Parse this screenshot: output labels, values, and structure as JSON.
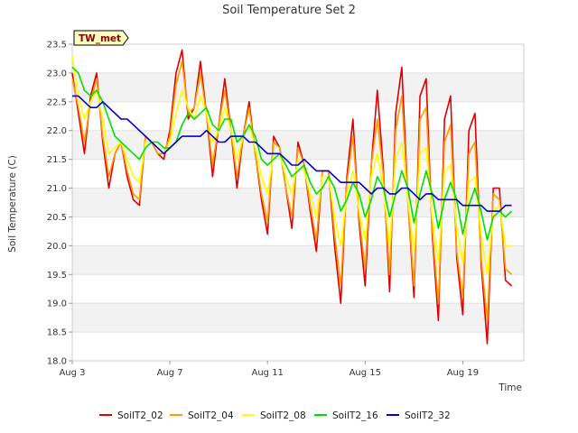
{
  "chart_data": {
    "type": "line",
    "title": "Soil Temperature Set 2",
    "xlabel": "Time",
    "ylabel": "Soil Temperature (C)",
    "station_badge": "TW_met",
    "x_unit": "day of August",
    "xlim": [
      3,
      21.5
    ],
    "ylim": [
      18.0,
      23.5
    ],
    "x_ticks": [
      {
        "value": 3,
        "label": "Aug 3"
      },
      {
        "value": 7,
        "label": "Aug 7"
      },
      {
        "value": 11,
        "label": "Aug 11"
      },
      {
        "value": 15,
        "label": "Aug 15"
      },
      {
        "value": 19,
        "label": "Aug 19"
      }
    ],
    "y_ticks": [
      "18.0",
      "18.5",
      "19.0",
      "19.5",
      "20.0",
      "20.5",
      "21.0",
      "21.5",
      "22.0",
      "22.5",
      "23.0",
      "23.5"
    ],
    "grid": "horizontal alternating bands",
    "legend_position": "bottom",
    "x": [
      3.0,
      3.25,
      3.5,
      3.75,
      4.0,
      4.25,
      4.5,
      4.75,
      5.0,
      5.25,
      5.5,
      5.75,
      6.0,
      6.25,
      6.5,
      6.75,
      7.0,
      7.25,
      7.5,
      7.75,
      8.0,
      8.25,
      8.5,
      8.75,
      9.0,
      9.25,
      9.5,
      9.75,
      10.0,
      10.25,
      10.5,
      10.75,
      11.0,
      11.25,
      11.5,
      11.75,
      12.0,
      12.25,
      12.5,
      12.75,
      13.0,
      13.25,
      13.5,
      13.75,
      14.0,
      14.25,
      14.5,
      14.75,
      15.0,
      15.25,
      15.5,
      15.75,
      16.0,
      16.25,
      16.5,
      16.75,
      17.0,
      17.25,
      17.5,
      17.75,
      18.0,
      18.25,
      18.5,
      18.75,
      19.0,
      19.25,
      19.5,
      19.75,
      20.0,
      20.25,
      20.5,
      20.75,
      21.0
    ],
    "series": [
      {
        "name": "SoilT2_02",
        "color": "#e00000",
        "values": [
          23.0,
          22.3,
          21.6,
          22.6,
          23.0,
          21.8,
          21.0,
          21.6,
          21.8,
          21.2,
          20.8,
          20.7,
          21.9,
          21.8,
          21.6,
          21.5,
          22.0,
          23.0,
          23.4,
          22.2,
          22.4,
          23.2,
          22.3,
          21.2,
          22.1,
          22.9,
          22.0,
          21.0,
          21.9,
          22.5,
          21.6,
          20.8,
          20.2,
          21.9,
          21.7,
          21.0,
          20.3,
          21.8,
          21.4,
          20.6,
          19.9,
          21.3,
          21.3,
          20.0,
          19.0,
          21.2,
          22.2,
          20.4,
          19.3,
          21.4,
          22.7,
          21.3,
          19.2,
          22.3,
          23.1,
          20.8,
          19.1,
          22.6,
          22.9,
          20.2,
          18.7,
          22.2,
          22.6,
          19.8,
          18.8,
          22.0,
          22.3,
          19.7,
          18.3,
          21.0,
          21.0,
          19.4,
          19.3
        ]
      },
      {
        "name": "SoilT2_04",
        "color": "#ff9a00",
        "values": [
          22.9,
          22.4,
          21.8,
          22.5,
          22.9,
          21.9,
          21.2,
          21.6,
          21.8,
          21.3,
          20.9,
          20.8,
          21.9,
          21.8,
          21.6,
          21.6,
          21.9,
          22.8,
          23.2,
          22.3,
          22.4,
          23.0,
          22.3,
          21.4,
          22.1,
          22.7,
          22.0,
          21.2,
          21.9,
          22.4,
          21.6,
          20.9,
          20.4,
          21.8,
          21.7,
          21.0,
          20.5,
          21.7,
          21.4,
          20.7,
          20.1,
          21.3,
          21.3,
          20.2,
          19.3,
          21.1,
          21.9,
          20.5,
          19.6,
          21.4,
          22.2,
          21.2,
          19.5,
          22.0,
          22.6,
          20.8,
          19.3,
          22.2,
          22.4,
          20.3,
          19.0,
          21.8,
          22.1,
          19.9,
          19.1,
          21.6,
          21.8,
          19.8,
          18.7,
          20.9,
          20.8,
          19.6,
          19.5
        ]
      },
      {
        "name": "SoilT2_08",
        "color": "#ffff00",
        "values": [
          23.3,
          22.6,
          22.2,
          22.5,
          22.7,
          22.2,
          21.6,
          21.7,
          21.8,
          21.5,
          21.2,
          21.1,
          21.8,
          21.8,
          21.7,
          21.6,
          21.8,
          22.3,
          22.7,
          22.4,
          22.2,
          22.6,
          22.3,
          21.8,
          22.0,
          22.4,
          22.0,
          21.5,
          21.9,
          22.1,
          21.7,
          21.2,
          20.9,
          21.6,
          21.6,
          21.2,
          20.9,
          21.5,
          21.3,
          20.9,
          20.5,
          21.2,
          21.2,
          20.5,
          20.0,
          20.9,
          21.3,
          20.6,
          20.1,
          21.2,
          21.6,
          21.0,
          20.0,
          21.5,
          21.8,
          20.8,
          19.9,
          21.6,
          21.7,
          20.5,
          19.7,
          21.3,
          21.4,
          20.3,
          19.7,
          21.1,
          21.2,
          20.2,
          19.5,
          20.6,
          20.7,
          20.0,
          20.0
        ]
      },
      {
        "name": "SoilT2_16",
        "color": "#00e000",
        "values": [
          23.1,
          23.0,
          22.7,
          22.6,
          22.7,
          22.5,
          22.2,
          21.9,
          21.8,
          21.7,
          21.6,
          21.5,
          21.7,
          21.8,
          21.8,
          21.7,
          21.7,
          21.8,
          22.1,
          22.3,
          22.2,
          22.3,
          22.4,
          22.1,
          22.0,
          22.2,
          22.2,
          21.8,
          21.9,
          22.1,
          21.9,
          21.5,
          21.4,
          21.5,
          21.6,
          21.4,
          21.2,
          21.3,
          21.4,
          21.1,
          20.9,
          21.0,
          21.2,
          21.0,
          20.6,
          20.8,
          21.1,
          20.9,
          20.5,
          20.8,
          21.2,
          21.0,
          20.5,
          20.9,
          21.3,
          21.0,
          20.4,
          20.9,
          21.3,
          20.9,
          20.3,
          20.8,
          21.1,
          20.8,
          20.2,
          20.7,
          21.0,
          20.6,
          20.1,
          20.5,
          20.6,
          20.5,
          20.6
        ]
      },
      {
        "name": "SoilT2_32",
        "color": "#0000d0",
        "values": [
          22.6,
          22.6,
          22.5,
          22.4,
          22.4,
          22.5,
          22.4,
          22.3,
          22.2,
          22.2,
          22.1,
          22.0,
          21.9,
          21.8,
          21.7,
          21.6,
          21.7,
          21.8,
          21.9,
          21.9,
          21.9,
          21.9,
          22.0,
          21.9,
          21.8,
          21.8,
          21.9,
          21.9,
          21.9,
          21.8,
          21.8,
          21.7,
          21.6,
          21.6,
          21.6,
          21.5,
          21.4,
          21.4,
          21.5,
          21.4,
          21.3,
          21.3,
          21.3,
          21.2,
          21.1,
          21.1,
          21.1,
          21.1,
          21.0,
          20.9,
          21.0,
          21.0,
          20.9,
          20.9,
          21.0,
          21.0,
          20.9,
          20.8,
          20.9,
          20.9,
          20.8,
          20.8,
          20.8,
          20.8,
          20.7,
          20.7,
          20.7,
          20.7,
          20.6,
          20.6,
          20.6,
          20.7,
          20.7
        ]
      }
    ]
  }
}
